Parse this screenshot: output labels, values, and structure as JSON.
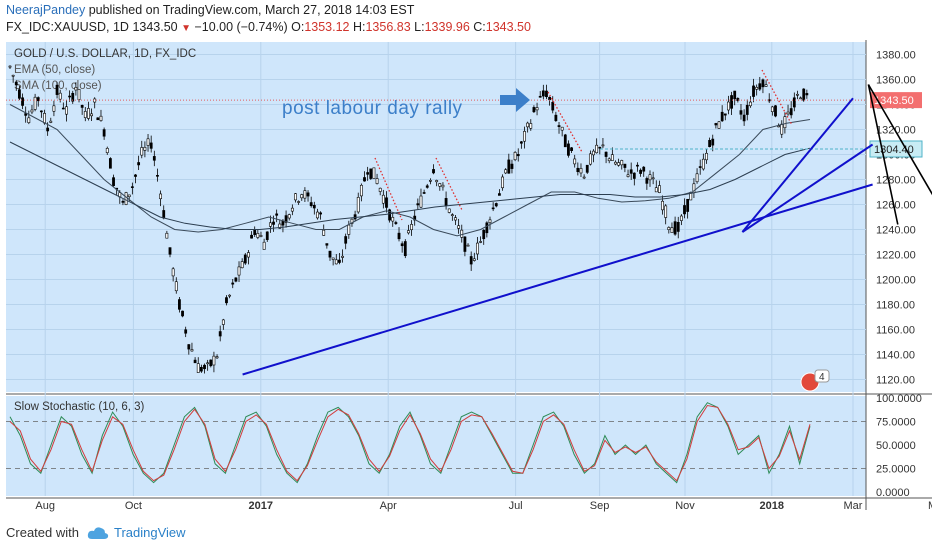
{
  "header": {
    "author": "NeerajPandey",
    "published": " published on TradingView.com, March 27, 2018 14:03 EST",
    "symbol": "FX_IDC:XAUUSD, 1D",
    "last": "1343.50",
    "arrow": "▼",
    "change": "−10.00 (−0.74%)",
    "o_label": "O:",
    "o_value": "1353.12",
    "h_label": "H:",
    "h_value": "1356.83",
    "l_label": "L:",
    "l_value": "1339.96",
    "c_label": "C:",
    "c_value": "1343.50"
  },
  "chart_data": [
    {
      "type": "candlestick",
      "title": "GOLD / U.S. DOLLAR, 1D, FX_IDC",
      "legend": [
        "EMA (50, close)",
        "SMA (100, close)"
      ],
      "annotation": "post labour day rally",
      "ylim": [
        1110,
        1390
      ],
      "yticks": [
        "1120.00",
        "1140.00",
        "1160.00",
        "1180.00",
        "1200.00",
        "1220.00",
        "1240.00",
        "1260.00",
        "1280.00",
        "1300.00",
        "1320.00",
        "1340.00",
        "1360.00",
        "1380.00"
      ],
      "price_labels": [
        "1343.50",
        "1304.40"
      ],
      "xticks": [
        "Aug",
        "Oct",
        "2017",
        "Apr",
        "Jul",
        "Sep",
        "Nov",
        "2018",
        "Mar",
        "May"
      ],
      "price_path": [
        1370,
        1350,
        1330,
        1345,
        1320,
        1350,
        1335,
        1355,
        1330,
        1340,
        1320,
        1280,
        1260,
        1275,
        1300,
        1310,
        1270,
        1220,
        1180,
        1150,
        1130,
        1128,
        1140,
        1180,
        1200,
        1215,
        1240,
        1230,
        1250,
        1245,
        1260,
        1270,
        1262,
        1250,
        1220,
        1210,
        1240,
        1260,
        1290,
        1280,
        1260,
        1240,
        1225,
        1250,
        1270,
        1290,
        1270,
        1250,
        1235,
        1215,
        1230,
        1250,
        1270,
        1290,
        1300,
        1320,
        1340,
        1350,
        1330,
        1310,
        1295,
        1285,
        1300,
        1305,
        1295,
        1290,
        1285,
        1288,
        1280,
        1270,
        1245,
        1240,
        1260,
        1280,
        1300,
        1320,
        1335,
        1345,
        1330,
        1350,
        1360,
        1340,
        1320,
        1335,
        1350,
        1343.5
      ],
      "ema50": [
        1340,
        1330,
        1320,
        1300,
        1280,
        1265,
        1250,
        1240,
        1238,
        1240,
        1245,
        1250,
        1245,
        1240,
        1240,
        1250,
        1255,
        1250,
        1240,
        1235,
        1240,
        1250,
        1260,
        1270,
        1270,
        1265,
        1262,
        1263,
        1265,
        1270,
        1285,
        1300,
        1320,
        1325,
        1328
      ],
      "sma100": [
        1310,
        1300,
        1290,
        1280,
        1270,
        1260,
        1250,
        1245,
        1242,
        1240,
        1240,
        1242,
        1245,
        1248,
        1250,
        1252,
        1255,
        1258,
        1260,
        1262,
        1264,
        1266,
        1268,
        1268,
        1268,
        1266,
        1266,
        1268,
        1272,
        1280,
        1290,
        1300,
        1305
      ],
      "trendlines": [
        {
          "from": [
            "2016-12-20",
            1124
          ],
          "to": [
            "2018-03-15",
            1276
          ]
        },
        {
          "from": [
            "2017-12-12",
            1238
          ],
          "to": [
            "2018-03-15",
            1308
          ]
        },
        {
          "from": [
            "2017-12-12",
            1238
          ],
          "to": [
            "2018-03-01",
            1345
          ]
        }
      ],
      "projections": [
        {
          "from": [
            "2018-03-12",
            1356
          ],
          "to": [
            "2018-04-02",
            1244
          ]
        },
        {
          "from": [
            "2018-03-12",
            1356
          ],
          "to": [
            "2018-05-02",
            1258
          ]
        }
      ]
    },
    {
      "type": "line",
      "title": "Slow Stochastic (10, 6, 3)",
      "ylim": [
        0,
        100
      ],
      "yticks": [
        "100.0000",
        "75.0000",
        "50.0000",
        "25.0000",
        "0.0000"
      ],
      "series": [
        {
          "values": [
            80,
            60,
            30,
            20,
            50,
            80,
            70,
            40,
            20,
            60,
            85,
            70,
            40,
            20,
            10,
            20,
            50,
            80,
            90,
            70,
            30,
            20,
            50,
            80,
            85,
            70,
            40,
            20,
            10,
            30,
            60,
            85,
            90,
            80,
            60,
            30,
            20,
            40,
            70,
            85,
            60,
            30,
            20,
            50,
            80,
            85,
            80,
            60,
            40,
            20,
            20,
            50,
            80,
            85,
            70,
            40,
            20,
            30,
            60,
            40,
            50,
            40,
            50,
            30,
            20,
            10,
            40,
            80,
            95,
            90,
            70,
            40,
            50,
            60,
            20,
            40,
            70,
            30,
            70
          ]
        },
        {
          "values": [
            75,
            65,
            35,
            22,
            45,
            75,
            72,
            45,
            22,
            55,
            80,
            72,
            45,
            22,
            12,
            18,
            45,
            75,
            88,
            72,
            35,
            22,
            45,
            75,
            82,
            72,
            45,
            22,
            12,
            28,
            55,
            80,
            88,
            82,
            62,
            35,
            22,
            38,
            65,
            82,
            62,
            35,
            22,
            45,
            75,
            82,
            80,
            62,
            42,
            22,
            20,
            45,
            75,
            82,
            72,
            45,
            22,
            28,
            55,
            42,
            48,
            42,
            48,
            32,
            22,
            12,
            35,
            75,
            92,
            90,
            72,
            45,
            48,
            58,
            25,
            38,
            65,
            35,
            72
          ]
        }
      ]
    }
  ],
  "watermark_badge": "4",
  "footer": {
    "created_with": "Created with",
    "brand": "TradingView"
  },
  "colors": {
    "bg": "#cfe6fb",
    "candles": "#000000",
    "trend": "#1010cc",
    "projection": "#000000",
    "ema": "#3a4a5a",
    "stoch_k": "#2e8b57",
    "stoch_d": "#d23c3c",
    "annotation": "#3c7fc9"
  }
}
